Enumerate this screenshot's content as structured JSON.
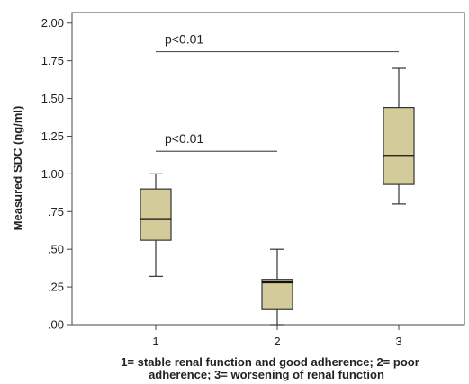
{
  "chart_data": {
    "type": "boxplot",
    "ylabel": "Measured SDC (ng/ml)",
    "xlabel_lines": [
      "1= stable renal function and good adherence; 2= poor",
      "adherence; 3= worsening of renal function"
    ],
    "ylim": [
      0,
      2.07
    ],
    "yticks": [
      {
        "value": 0.0,
        "label": ".00"
      },
      {
        "value": 0.25,
        "label": ".25"
      },
      {
        "value": 0.5,
        "label": ".50"
      },
      {
        "value": 0.75,
        "label": ".75"
      },
      {
        "value": 1.0,
        "label": "1.00"
      },
      {
        "value": 1.25,
        "label": "1.25"
      },
      {
        "value": 1.5,
        "label": "1.50"
      },
      {
        "value": 1.75,
        "label": "1.75"
      },
      {
        "value": 2.0,
        "label": "2.00"
      }
    ],
    "categories": [
      "1",
      "2",
      "3"
    ],
    "boxes": [
      {
        "category": "1",
        "min": 0.32,
        "q1": 0.56,
        "median": 0.7,
        "q3": 0.9,
        "max": 1.0
      },
      {
        "category": "2",
        "min": 0.0,
        "q1": 0.1,
        "median": 0.28,
        "q3": 0.3,
        "max": 0.5
      },
      {
        "category": "3",
        "min": 0.8,
        "q1": 0.93,
        "median": 1.12,
        "q3": 1.44,
        "max": 1.7
      }
    ],
    "annotations": [
      {
        "text": "p<0.01",
        "from": "1",
        "to": "3",
        "y": 1.81
      },
      {
        "text": "p<0.01",
        "from": "1",
        "to": "2",
        "y": 1.15
      }
    ],
    "colors": {
      "box_fill": "#d4cb9b",
      "stroke": "#333333",
      "axis": "#444444"
    }
  }
}
